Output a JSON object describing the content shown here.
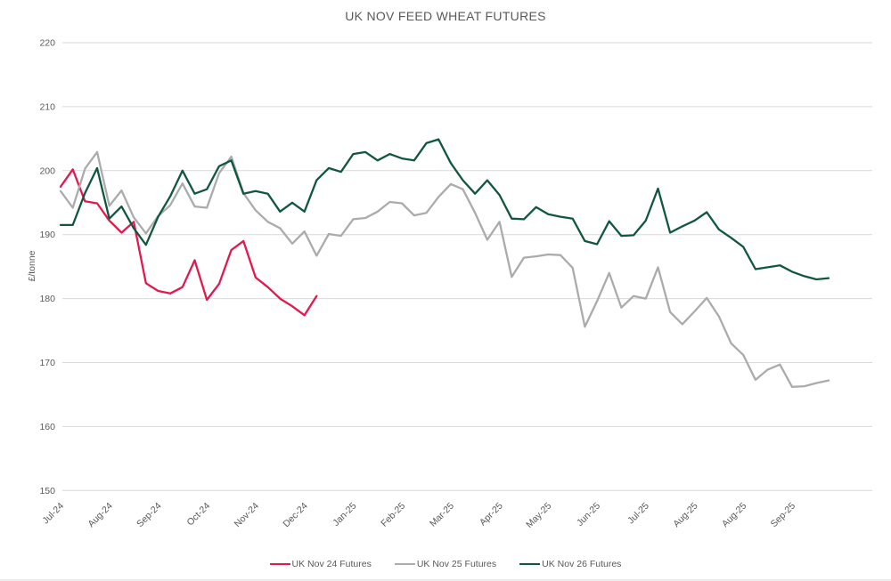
{
  "chart_data": {
    "type": "line",
    "title": "UK NOV FEED WHEAT FUTURES",
    "ylabel": "£/tonne",
    "xlabel": "",
    "ylim": [
      150,
      220
    ],
    "yticks": [
      150,
      160,
      170,
      180,
      190,
      200,
      210,
      220
    ],
    "x_tick_labels": [
      "Jul-24",
      "Aug-24",
      "Sep-24",
      "Oct-24",
      "Nov-24",
      "Dec-24",
      "Jan-25",
      "Feb-25",
      "Mar-25",
      "Apr-25",
      "May-25",
      "Jun-25",
      "Jul-25",
      "Aug-25",
      "Aug-25",
      "Sep-25"
    ],
    "points_per_tick": 4,
    "n_points": 64,
    "x_unit": "weekly",
    "grid": "horizontal-only",
    "gridline_color": "#d9d9d9",
    "text_color": "#595959",
    "background_color": "#ffffff",
    "legend_position": "bottom-center",
    "series": [
      {
        "name": "UK Nov 24 Futures",
        "color": "#e3194e",
        "values": [
          197.5,
          200.2,
          195.2,
          194.9,
          192.2,
          190.3,
          192.0,
          182.4,
          181.2,
          180.8,
          181.8,
          186.0,
          179.8,
          182.3,
          187.6,
          189.0,
          183.3,
          181.8,
          180.0,
          178.8,
          177.4,
          180.4
        ]
      },
      {
        "name": "UK Nov 25 Futures",
        "color": "#ababab",
        "values": [
          196.8,
          194.2,
          200.3,
          202.9,
          194.5,
          196.9,
          192.7,
          190.2,
          192.9,
          194.6,
          198.0,
          194.4,
          194.2,
          199.6,
          202.2,
          196.5,
          193.8,
          192.0,
          191.0,
          188.6,
          190.5,
          186.7,
          190.1,
          189.8,
          192.4,
          192.6,
          193.6,
          195.1,
          194.9,
          193.0,
          193.4,
          195.9,
          197.9,
          197.1,
          193.4,
          189.2,
          192.0,
          183.4,
          186.4,
          186.6,
          186.9,
          186.8,
          184.8,
          175.6,
          179.6,
          184.0,
          178.6,
          180.4,
          180.0,
          184.9,
          177.9,
          176.0,
          178.0,
          180.1,
          177.2,
          173.0,
          171.2,
          167.3,
          168.9,
          169.7,
          166.2,
          166.3,
          166.8,
          167.2
        ]
      },
      {
        "name": "UK Nov 26 Futures",
        "color": "#115740",
        "values": [
          191.5,
          191.5,
          196.5,
          200.4,
          192.5,
          194.4,
          191.0,
          188.4,
          192.8,
          196.0,
          200.0,
          196.4,
          197.1,
          200.7,
          201.6,
          196.4,
          196.8,
          196.4,
          193.6,
          195.0,
          193.6,
          198.5,
          200.4,
          199.8,
          202.6,
          202.9,
          201.6,
          202.6,
          201.9,
          201.6,
          204.3,
          204.9,
          201.2,
          198.5,
          196.4,
          198.5,
          196.2,
          192.5,
          192.4,
          194.3,
          193.2,
          192.8,
          192.5,
          189.0,
          188.5,
          192.1,
          189.8,
          189.9,
          192.2,
          197.2,
          190.3,
          191.3,
          192.2,
          193.5,
          190.8,
          189.5,
          188.1,
          184.6,
          184.9,
          185.2,
          184.2,
          183.5,
          183.0,
          183.2
        ]
      }
    ]
  }
}
